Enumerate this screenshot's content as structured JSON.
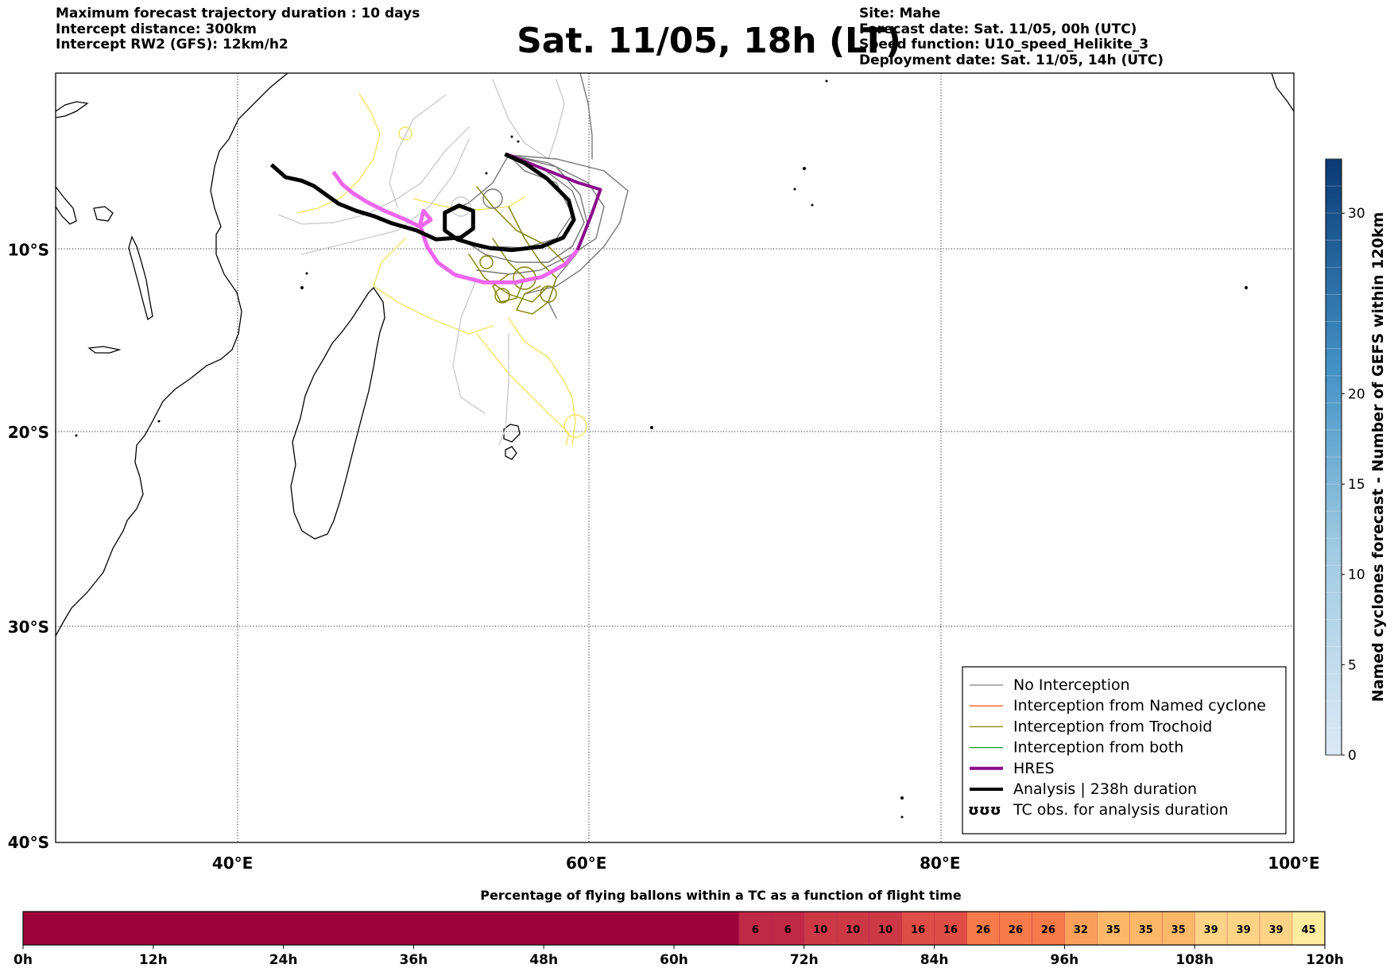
{
  "header_left": [
    "Maximum forecast trajectory duration : 10 days",
    "Intercept distance: 300km",
    "Intercept RW2 (GFS):  12km/h2"
  ],
  "header_right": [
    "Site: Mahe",
    "Forecast date: Sat. 11/05, 00h (UTC)",
    "Speed function: U10_speed_Helikite_3",
    "Deployment date: Sat. 11/05, 14h (UTC)"
  ],
  "title": "Sat. 11/05, 18h (LT)",
  "map": {
    "lon_range": [
      30,
      100
    ],
    "lat_range": [
      -40,
      0
    ],
    "lon_ticks": [
      {
        "value": 40,
        "label": "40°E"
      },
      {
        "value": 60,
        "label": "60°E"
      },
      {
        "value": 80,
        "label": "80°E"
      },
      {
        "value": 100,
        "label": "100°E"
      }
    ],
    "lat_ticks": [
      {
        "value": -10,
        "label": "10°S"
      },
      {
        "value": -20,
        "label": "20°S"
      },
      {
        "value": -30,
        "label": "30°S"
      },
      {
        "value": -40,
        "label": "40°S"
      }
    ],
    "gridlines": true,
    "site": {
      "name": "Mahe",
      "lon": 55.4,
      "lat": -4.6
    }
  },
  "legend": [
    {
      "label": "No Interception",
      "color": "#7f7f7f",
      "style": "thin"
    },
    {
      "label": "Interception from Named cyclone",
      "color": "#ff5a1e",
      "style": "thin"
    },
    {
      "label": "Interception from Trochoid",
      "color": "#808000",
      "style": "thin"
    },
    {
      "label": "Interception from both",
      "color": "#1a9a1a",
      "style": "thin"
    },
    {
      "label": "HRES",
      "color": "#8b0a8b",
      "style": "thick"
    },
    {
      "label": "Analysis | 238h duration",
      "color": "#000000",
      "style": "thick"
    },
    {
      "label": "TC obs. for analysis duration",
      "color": "#000000",
      "style": "symbol",
      "symbol": "ʊʊʊ"
    }
  ],
  "right_colorbar": {
    "label": "Named cyclones forecast - Number of GEFS within 120km",
    "range": [
      0,
      33
    ],
    "ticks": [
      0,
      5,
      10,
      15,
      20,
      30
    ],
    "color_low": "#dce9f6",
    "color_high": "#0a3a75"
  },
  "bottom_colorbar": {
    "title": "Percentage of flying ballons within a TC as a function of flight time",
    "time_range_h": [
      0,
      120
    ],
    "time_ticks": [
      "0h",
      "12h",
      "24h",
      "36h",
      "48h",
      "60h",
      "72h",
      "84h",
      "96h",
      "108h",
      "120h"
    ],
    "cells": [
      {
        "start": 0,
        "end": 66,
        "value": "",
        "color": "#9e003a"
      },
      {
        "start": 66,
        "end": 69,
        "value": "6",
        "color": "#c12845"
      },
      {
        "start": 69,
        "end": 72,
        "value": "6",
        "color": "#c12845"
      },
      {
        "start": 72,
        "end": 75,
        "value": "10",
        "color": "#cd3847"
      },
      {
        "start": 75,
        "end": 78,
        "value": "10",
        "color": "#cd3847"
      },
      {
        "start": 78,
        "end": 81,
        "value": "10",
        "color": "#cd3847"
      },
      {
        "start": 81,
        "end": 84,
        "value": "16",
        "color": "#e04c46"
      },
      {
        "start": 84,
        "end": 87,
        "value": "16",
        "color": "#e04c46"
      },
      {
        "start": 87,
        "end": 90,
        "value": "26",
        "color": "#f67a4a"
      },
      {
        "start": 90,
        "end": 93,
        "value": "26",
        "color": "#f67a4a"
      },
      {
        "start": 93,
        "end": 96,
        "value": "26",
        "color": "#f67a4a"
      },
      {
        "start": 96,
        "end": 99,
        "value": "32",
        "color": "#fba05b"
      },
      {
        "start": 99,
        "end": 102,
        "value": "35",
        "color": "#fdb768"
      },
      {
        "start": 102,
        "end": 105,
        "value": "35",
        "color": "#fdb768"
      },
      {
        "start": 105,
        "end": 108,
        "value": "35",
        "color": "#fdb768"
      },
      {
        "start": 108,
        "end": 111,
        "value": "39",
        "color": "#fed385"
      },
      {
        "start": 111,
        "end": 114,
        "value": "39",
        "color": "#fed385"
      },
      {
        "start": 114,
        "end": 117,
        "value": "39",
        "color": "#fed385"
      },
      {
        "start": 117,
        "end": 120,
        "value": "45",
        "color": "#feed9f"
      }
    ]
  },
  "tracks": {
    "analysis": [
      [
        55.4,
        -4.6
      ],
      [
        56.5,
        -5.1
      ],
      [
        57.8,
        -6.0
      ],
      [
        59.0,
        -7.2
      ],
      [
        59.3,
        -8.3
      ],
      [
        58.7,
        -9.3
      ],
      [
        57.5,
        -9.8
      ],
      [
        55.8,
        -10.0
      ],
      [
        54.6,
        -9.9
      ],
      [
        53.7,
        -9.7
      ],
      [
        52.7,
        -9.4
      ],
      [
        52.0,
        -8.9
      ],
      [
        52.0,
        -7.9
      ],
      [
        52.8,
        -7.5
      ],
      [
        53.6,
        -7.8
      ],
      [
        53.6,
        -8.8
      ],
      [
        52.9,
        -9.3
      ],
      [
        51.5,
        -9.4
      ],
      [
        50.4,
        -8.9
      ],
      [
        49.0,
        -8.5
      ],
      [
        48.0,
        -8.1
      ],
      [
        47.0,
        -7.8
      ],
      [
        46.0,
        -7.4
      ],
      [
        45.3,
        -6.9
      ],
      [
        44.6,
        -6.4
      ],
      [
        43.9,
        -6.1
      ],
      [
        43.0,
        -5.9
      ],
      [
        42.2,
        -5.2
      ]
    ],
    "hres": [
      [
        55.5,
        -4.6
      ],
      [
        57.5,
        -5.4
      ],
      [
        59.5,
        -6.2
      ],
      [
        60.8,
        -6.6
      ],
      [
        60.3,
        -8.0
      ],
      [
        59.5,
        -10.0
      ],
      [
        58.8,
        -10.8
      ],
      [
        57.5,
        -11.5
      ],
      [
        56.0,
        -11.8
      ],
      [
        54.2,
        -11.8
      ],
      [
        52.6,
        -11.4
      ],
      [
        51.6,
        -10.7
      ],
      [
        51.0,
        -9.8
      ],
      [
        50.6,
        -8.6
      ],
      [
        50.8,
        -7.8
      ],
      [
        51.2,
        -8.3
      ],
      [
        50.6,
        -8.7
      ],
      [
        49.8,
        -8.3
      ],
      [
        48.6,
        -7.8
      ],
      [
        47.6,
        -7.3
      ],
      [
        46.8,
        -6.8
      ],
      [
        46.2,
        -6.3
      ],
      [
        45.7,
        -5.6
      ]
    ]
  }
}
